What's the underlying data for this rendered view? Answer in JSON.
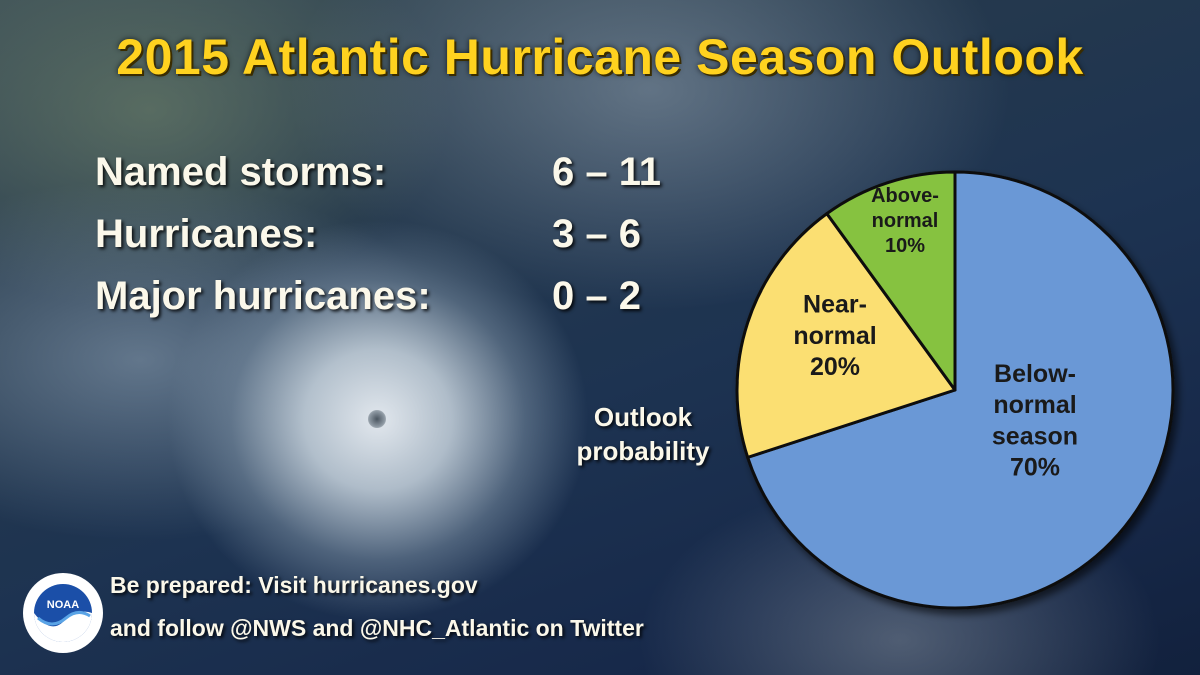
{
  "title": "2015 Atlantic Hurricane Season Outlook",
  "stats": [
    {
      "label": "Named storms:",
      "value": "6 – 11"
    },
    {
      "label": "Hurricanes:",
      "value": "3 – 6"
    },
    {
      "label": "Major hurricanes:",
      "value": "0 – 2"
    }
  ],
  "chart_data": {
    "type": "pie",
    "title": "Outlook probability",
    "slices": [
      {
        "name": "Below-normal season",
        "value": 70,
        "label_lines": [
          "Below-",
          "normal",
          "season",
          "70%"
        ],
        "color": "#6b98d6"
      },
      {
        "name": "Near-normal",
        "value": 20,
        "label_lines": [
          "Near-",
          "normal",
          "20%"
        ],
        "color": "#fbdf72"
      },
      {
        "name": "Above-normal",
        "value": 10,
        "label_lines": [
          "Above-",
          "normal",
          "10%"
        ],
        "color": "#86c240"
      }
    ]
  },
  "footer": {
    "line1": "Be prepared: Visit hurricanes.gov",
    "line2": "and follow @NWS and @NHC_Atlantic on Twitter"
  },
  "logo": {
    "text": "NOAA",
    "icon": "noaa-logo-icon"
  }
}
